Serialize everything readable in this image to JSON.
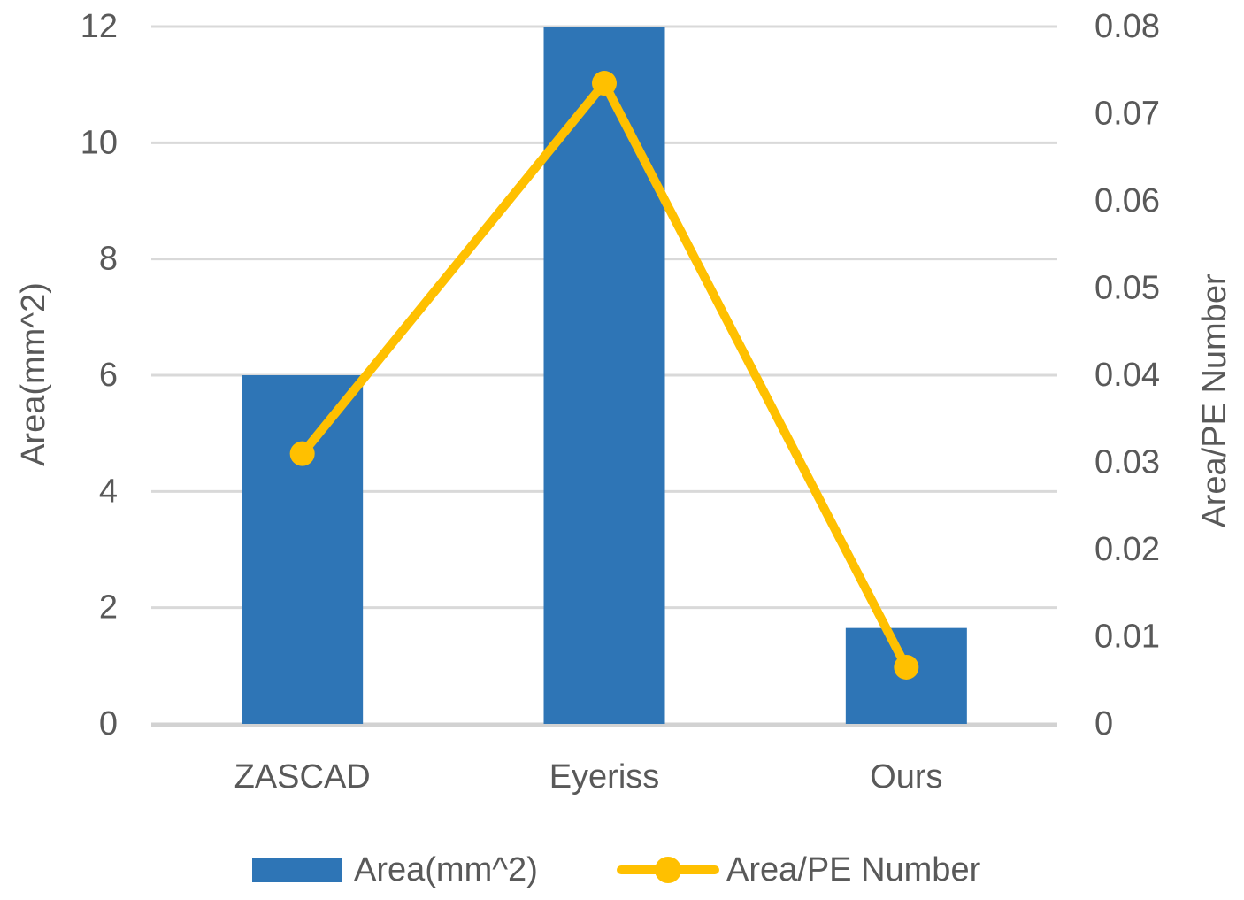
{
  "chart_data": {
    "type": "combo-bar-line",
    "categories": [
      "ZASCAD",
      "Eyeriss",
      "Ours"
    ],
    "series": [
      {
        "name": "Area(mm^2)",
        "type": "bar",
        "axis": "left",
        "color": "#2E75B6",
        "values": [
          6,
          12,
          1.65
        ]
      },
      {
        "name": "Area/PE Number",
        "type": "line",
        "axis": "right",
        "color": "#FFC000",
        "values": [
          0.031,
          0.0735,
          0.0065
        ]
      }
    ],
    "left_axis": {
      "title": "Area(mm^2)",
      "min": 0,
      "max": 12,
      "tick_step": 2,
      "tick_labels": [
        "12",
        "10",
        "8",
        "6",
        "4",
        "2",
        "0"
      ]
    },
    "right_axis": {
      "title": "Area/PE Number",
      "min": 0,
      "max": 0.08,
      "tick_step": 0.01,
      "tick_labels": [
        "0.08",
        "0.07",
        "0.06",
        "0.05",
        "0.04",
        "0.03",
        "0.02",
        "0.01",
        "0"
      ]
    },
    "grid": "horizontal",
    "legend_position": "bottom"
  },
  "legend": {
    "items": [
      {
        "label": "Area(mm^2)",
        "marker": "bar-swatch",
        "color": "#2E75B6"
      },
      {
        "label": "Area/PE Number",
        "marker": "line-dot",
        "color": "#FFC000"
      }
    ]
  },
  "colors": {
    "bar_blue": "#2E75B6",
    "line_yellow": "#FFC000",
    "gridline": "#D9D9D9",
    "axis_baseline": "#D2D2D2",
    "text": "#595959"
  }
}
